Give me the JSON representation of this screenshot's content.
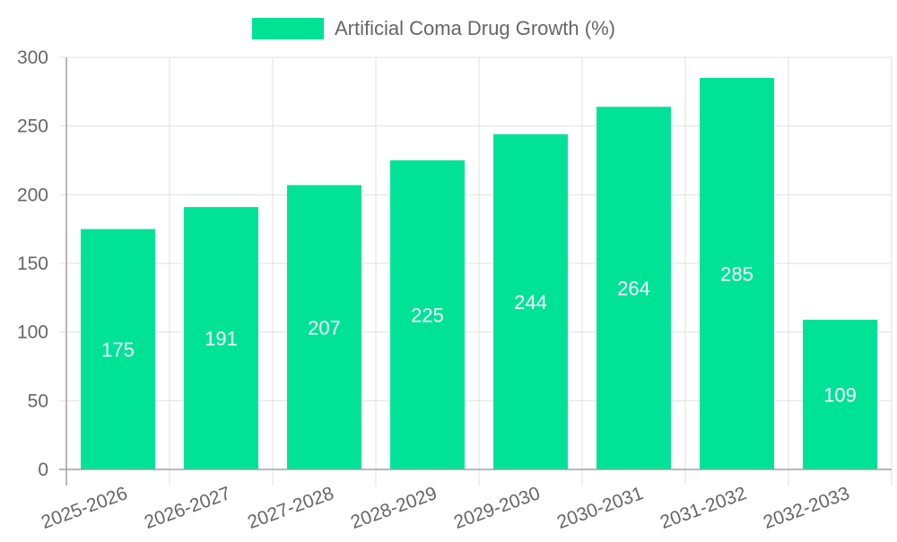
{
  "legend": {
    "label": "Artificial Coma Drug Growth (%)",
    "swatch_color": "#00e396"
  },
  "colors": {
    "bar": "#00e396",
    "bar_label": "#ffffff",
    "grid": "#e0e0e0",
    "axis": "#a0a0a0",
    "tick_text": "#666666"
  },
  "y_axis": {
    "ticks": [
      "0",
      "50",
      "100",
      "150",
      "200",
      "250",
      "300"
    ]
  },
  "chart_data": {
    "type": "bar",
    "title": "",
    "categories": [
      "2025-2026",
      "2026-2027",
      "2027-2028",
      "2028-2029",
      "2029-2030",
      "2030-2031",
      "2031-2032",
      "2032-2033"
    ],
    "series": [
      {
        "name": "Artificial Coma Drug Growth (%)",
        "values": [
          175,
          191,
          207,
          225,
          244,
          264,
          285,
          109
        ],
        "color": "#00e396"
      }
    ],
    "values": [
      175,
      191,
      207,
      225,
      244,
      264,
      285,
      109
    ],
    "xlabel": "",
    "ylabel": "",
    "ylim": [
      0,
      300
    ],
    "yticks": [
      0,
      50,
      100,
      150,
      200,
      250,
      300
    ],
    "grid": true,
    "legend_position": "top",
    "data_labels": true,
    "x_tick_rotation": -20
  }
}
